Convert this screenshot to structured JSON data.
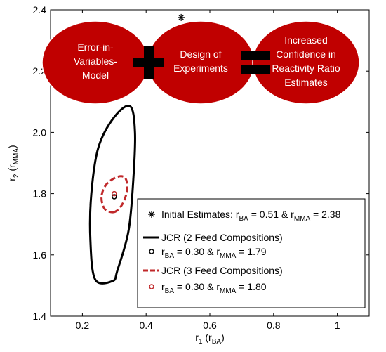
{
  "chart_data": {
    "type": "scatter",
    "xlabel": "r",
    "xlabel_sub": "1",
    "xlabel_paren": "(r",
    "xlabel_paren_sub": "BA",
    "xlabel_close": ")",
    "ylabel": "r",
    "ylabel_sub": "2",
    "ylabel_paren": "(r",
    "ylabel_paren_sub": "MMA",
    "ylabel_close": ")",
    "xlim": [
      0.1,
      1.1
    ],
    "ylim": [
      1.4,
      2.4
    ],
    "xticks": [
      0.2,
      0.4,
      0.6,
      0.8,
      1.0
    ],
    "xtick_labels": [
      "0.2",
      "0.4",
      "0.6",
      "0.8",
      "1"
    ],
    "yticks": [
      1.4,
      1.6,
      1.8,
      2.0,
      2.2,
      2.4
    ],
    "ytick_labels": [
      "1.4",
      "1.6",
      "1.8",
      "2.0",
      "2.2",
      "2.4"
    ],
    "grid": false,
    "legend_position": "bottom-right",
    "initial_estimate": {
      "x": 0.51,
      "y": 2.375,
      "color": "#000000"
    },
    "series": [
      {
        "kind": "jcr",
        "color": "#000000",
        "style": "solid",
        "center": [
          0.295,
          1.795
        ],
        "points": [
          [
            0.295,
            1.515
          ],
          [
            0.24,
            1.52
          ],
          [
            0.225,
            1.65
          ],
          [
            0.228,
            1.8
          ],
          [
            0.25,
            1.95
          ],
          [
            0.3,
            2.05
          ],
          [
            0.35,
            2.085
          ],
          [
            0.365,
            2.0
          ],
          [
            0.36,
            1.85
          ],
          [
            0.345,
            1.68
          ],
          [
            0.31,
            1.55
          ]
        ]
      },
      {
        "kind": "estimate",
        "color": "#000000",
        "point": [
          0.3,
          1.79
        ]
      },
      {
        "kind": "jcr",
        "color": "#c0282a",
        "style": "dashed",
        "center": [
          0.3,
          1.8
        ],
        "points": [
          [
            0.3,
            1.74
          ],
          [
            0.27,
            1.75
          ],
          [
            0.26,
            1.79
          ],
          [
            0.275,
            1.83
          ],
          [
            0.31,
            1.855
          ],
          [
            0.335,
            1.85
          ],
          [
            0.34,
            1.81
          ],
          [
            0.325,
            1.765
          ]
        ]
      },
      {
        "kind": "estimate",
        "color": "#c0282a",
        "point": [
          0.3,
          1.8
        ]
      }
    ],
    "legend": [
      {
        "marker": "asterisk",
        "color": "#000000",
        "text": "Initial Estimates: r",
        "sub1": "BA",
        "mid": " = 0.51 & r",
        "sub2": "MMA",
        "end": " = 2.38"
      },
      {
        "marker": "solid-line",
        "color": "#000000",
        "text": "JCR (2 Feed Compositions)"
      },
      {
        "marker": "circle",
        "color": "#000000",
        "text": "r",
        "sub1": "BA",
        "mid": " = 0.30 & r",
        "sub2": "MMA",
        "end": " = 1.79"
      },
      {
        "marker": "dashed-line",
        "color": "#c0282a",
        "text": "JCR (3 Feed Compositions)"
      },
      {
        "marker": "circle",
        "color": "#c0282a",
        "text": "r",
        "sub1": "BA",
        "mid": " = 0.30 & r",
        "sub2": "MMA",
        "end": " = 1.80"
      }
    ]
  },
  "overlay": {
    "bubble_color": "#c00000",
    "bubbles": [
      {
        "lines": [
          "Error-in-",
          "Variables-",
          "Model"
        ]
      },
      {
        "lines": [
          "Design of",
          "Experiments"
        ]
      },
      {
        "lines": [
          "Increased",
          "Confidence in",
          "Reactivity Ratio",
          "Estimates"
        ]
      }
    ],
    "operators": [
      "plus",
      "equals"
    ]
  }
}
